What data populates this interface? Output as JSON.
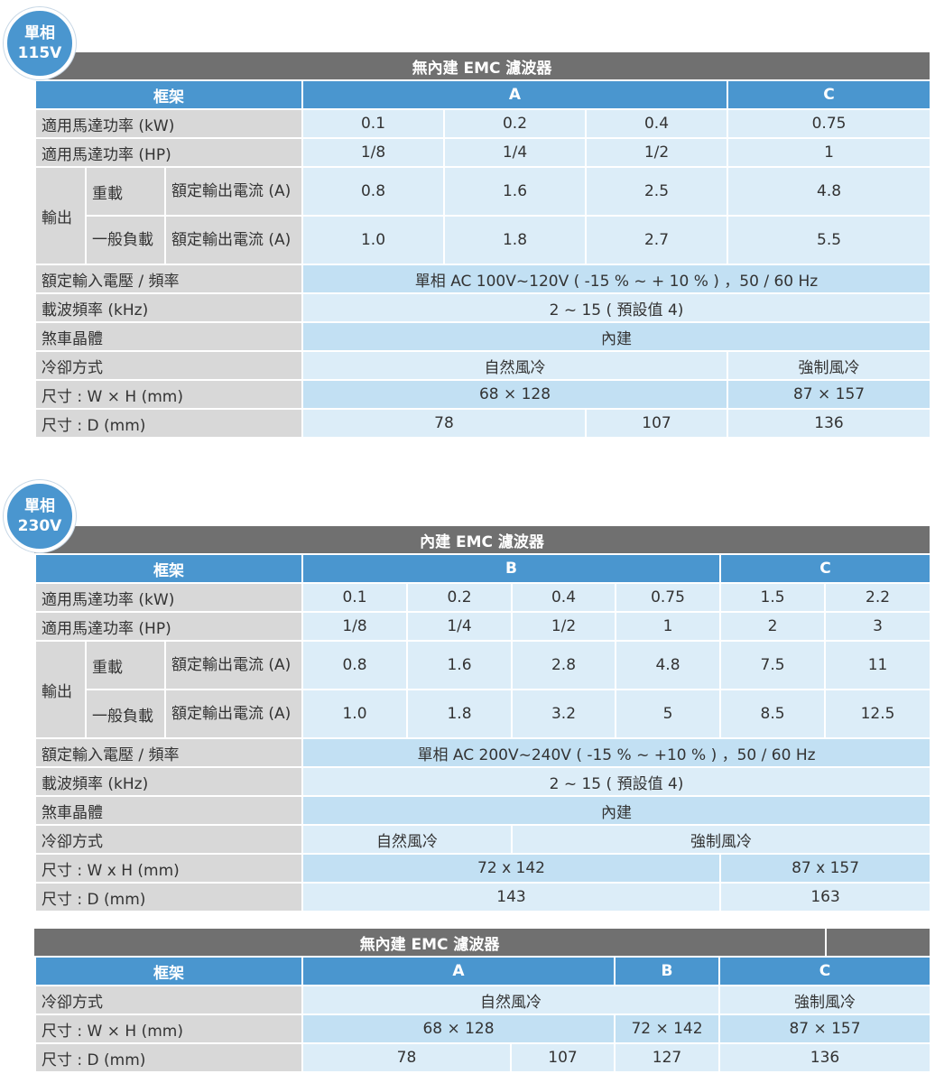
{
  "colors": {
    "accent": "#4a96cf",
    "title_bar": "#707070",
    "label_cell": "#d8d8d8",
    "row_blue_1": "#c2e0f3",
    "row_blue_2": "#dcedf8"
  },
  "section1": {
    "badge": [
      "單相",
      "115V"
    ],
    "title": "無內建 EMC 濾波器",
    "hdr": {
      "frame": "框架",
      "a": "A",
      "c": "C"
    },
    "row_kw": {
      "label": "適用馬達功率 (kW)",
      "v": [
        "0.1",
        "0.2",
        "0.4",
        "0.75"
      ]
    },
    "row_hp": {
      "label": "適用馬達功率 (HP)",
      "v": [
        "1/8",
        "1/4",
        "1/2",
        "1"
      ]
    },
    "output": {
      "label": "輸出",
      "heavy": {
        "label": "重載",
        "sub": "額定輸出電流 (A)",
        "v": [
          "0.8",
          "1.6",
          "2.5",
          "4.8"
        ]
      },
      "normal": {
        "label": "一般負載",
        "sub": "額定輸出電流 (A)",
        "v": [
          "1.0",
          "1.8",
          "2.7",
          "5.5"
        ]
      }
    },
    "row_volt": {
      "label": "額定輸入電壓 / 頻率",
      "v": "單相 AC 100V~120V ( -15 % ~ + 10 % ) ，50  /  60 Hz"
    },
    "row_carrier": {
      "label": "載波頻率 (kHz)",
      "v": "2 ~ 15 ( 預設值 4)"
    },
    "row_brake": {
      "label": "煞車晶體",
      "v": "內建"
    },
    "row_cool": {
      "label": "冷卻方式",
      "a": "自然風冷",
      "c": "強制風冷"
    },
    "row_wh": {
      "label": "尺寸 : W × H (mm)",
      "a": "68 × 128",
      "c": "87 × 157"
    },
    "row_d": {
      "label": "尺寸 : D (mm)",
      "v": [
        "78",
        "107",
        "136"
      ]
    }
  },
  "section2": {
    "badge": [
      "單相",
      "230V"
    ],
    "title": "內建 EMC 濾波器",
    "hdr": {
      "frame": "框架",
      "b": "B",
      "c": "C"
    },
    "row_kw": {
      "label": "適用馬達功率 (kW)",
      "v": [
        "0.1",
        "0.2",
        "0.4",
        "0.75",
        "1.5",
        "2.2"
      ]
    },
    "row_hp": {
      "label": "適用馬達功率 (HP)",
      "v": [
        "1/8",
        "1/4",
        "1/2",
        "1",
        "2",
        "3"
      ]
    },
    "output": {
      "label": "輸出",
      "heavy": {
        "label": "重載",
        "sub": "額定輸出電流 (A)",
        "v": [
          "0.8",
          "1.6",
          "2.8",
          "4.8",
          "7.5",
          "11"
        ]
      },
      "normal": {
        "label": "一般負載",
        "sub": "額定輸出電流 (A)",
        "v": [
          "1.0",
          "1.8",
          "3.2",
          "5",
          "8.5",
          "12.5"
        ]
      }
    },
    "row_volt": {
      "label": "額定輸入電壓 / 頻率",
      "v": "單相 AC 200V~240V ( -15 % ~ +10 % ) ，50  /  60 Hz"
    },
    "row_carrier": {
      "label": "載波頻率 (kHz)",
      "v": "2 ~ 15 ( 預設值 4)"
    },
    "row_brake": {
      "label": "煞車晶體",
      "v": "內建"
    },
    "row_cool": {
      "label": "冷卻方式",
      "natural": "自然風冷",
      "forced": "強制風冷"
    },
    "row_wh": {
      "label": "尺寸 : W x H (mm)",
      "b": "72 x 142",
      "c": "87 x 157"
    },
    "row_d": {
      "label": "尺寸 : D (mm)",
      "b": "143",
      "c": "163"
    }
  },
  "section3": {
    "title": "無內建 EMC 濾波器",
    "hdr": {
      "frame": "框架",
      "a": "A",
      "b": "B",
      "c": "C"
    },
    "row_cool": {
      "label": "冷卻方式",
      "natural": "自然風冷",
      "forced": "強制風冷"
    },
    "row_wh": {
      "label": "尺寸 : W × H (mm)",
      "a": "68 × 128",
      "b": "72 × 142",
      "c": "87 × 157"
    },
    "row_d": {
      "label": "尺寸 : D (mm)",
      "v": [
        "78",
        "107",
        "127",
        "136"
      ]
    }
  }
}
